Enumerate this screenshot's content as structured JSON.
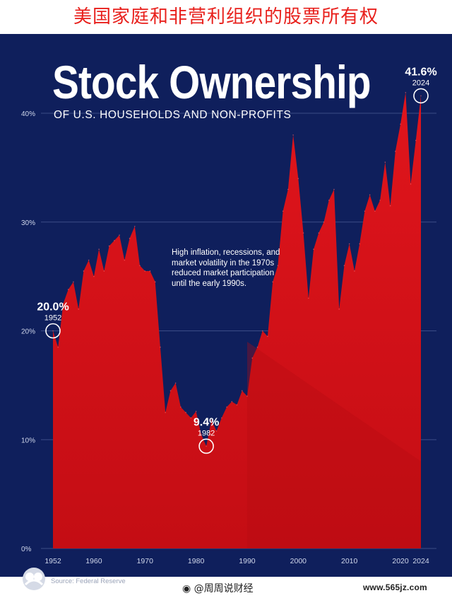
{
  "banner": {
    "text": "美国家庭和非营利组织的股票所有权"
  },
  "title": "Stock Ownership",
  "subtitle": "OF U.S. HOUSEHOLDS AND NON-PROFITS",
  "annotation": "High inflation, recessions, and market volatility in the 1970s reduced market participation until the early 1990s.",
  "source": "Source: Federal Reserve",
  "weibo_credit": "@周周说财经",
  "watermark": "www.565jz.com",
  "colors": {
    "background": "#0f1f5c",
    "area": "#e0151c",
    "text": "#ffffff",
    "banner_text": "#e8201c"
  },
  "chart_data": {
    "type": "area",
    "title": "Stock Ownership",
    "subtitle": "OF U.S. HOUSEHOLDS AND NON-PROFITS",
    "xlim": [
      1952,
      2024
    ],
    "ylim": [
      0,
      40
    ],
    "x_ticks": [
      1952,
      1960,
      1970,
      1980,
      1990,
      2000,
      2010,
      2020,
      2024
    ],
    "y_ticks": [
      0,
      10,
      20,
      30,
      40
    ],
    "y_tick_labels": [
      "0%",
      "10%",
      "20%",
      "30%",
      "40%"
    ],
    "grid": true,
    "series": [
      {
        "x": [
          1952,
          1953,
          1954,
          1955,
          1956,
          1957,
          1958,
          1959,
          1960,
          1961,
          1962,
          1963,
          1964,
          1965,
          1966,
          1967,
          1968,
          1969,
          1970,
          1971,
          1972,
          1973,
          1974,
          1975,
          1976,
          1977,
          1978,
          1979,
          1980,
          1981,
          1982,
          1983,
          1984,
          1985,
          1986,
          1987,
          1988,
          1989,
          1990,
          1991,
          1992,
          1993,
          1994,
          1995,
          1996,
          1997,
          1998,
          1999,
          2000,
          2001,
          2002,
          2003,
          2004,
          2005,
          2006,
          2007,
          2008,
          2009,
          2010,
          2011,
          2012,
          2013,
          2014,
          2015,
          2016,
          2017,
          2018,
          2019,
          2020,
          2021,
          2022,
          2023,
          2024
        ],
        "y": [
          20.0,
          18.5,
          22.5,
          23.8,
          24.5,
          22.0,
          25.5,
          26.5,
          25.0,
          27.5,
          25.5,
          27.8,
          28.3,
          28.8,
          26.5,
          28.5,
          29.6,
          26.0,
          25.5,
          25.5,
          24.5,
          18.5,
          12.5,
          14.5,
          15.2,
          13.0,
          12.5,
          12.0,
          12.6,
          10.5,
          9.4,
          11.8,
          10.8,
          12.0,
          13.0,
          13.5,
          13.2,
          14.5,
          14.0,
          17.5,
          18.5,
          20.0,
          19.5,
          24.5,
          26.0,
          31.0,
          33.0,
          38.0,
          34.0,
          29.0,
          23.0,
          27.5,
          29.0,
          30.0,
          32.0,
          33.0,
          22.0,
          26.0,
          28.0,
          25.5,
          28.0,
          31.0,
          32.5,
          31.0,
          32.0,
          35.5,
          31.5,
          36.5,
          39.0,
          41.9,
          33.5,
          37.5,
          41.6
        ]
      }
    ],
    "annotations": [
      {
        "year": 1952,
        "value_label": "20.0%",
        "year_label": "1952"
      },
      {
        "year": 1982,
        "value_label": "9.4%",
        "year_label": "1982"
      },
      {
        "year": 2024,
        "value_label": "41.6%",
        "year_label": "2024"
      }
    ]
  }
}
